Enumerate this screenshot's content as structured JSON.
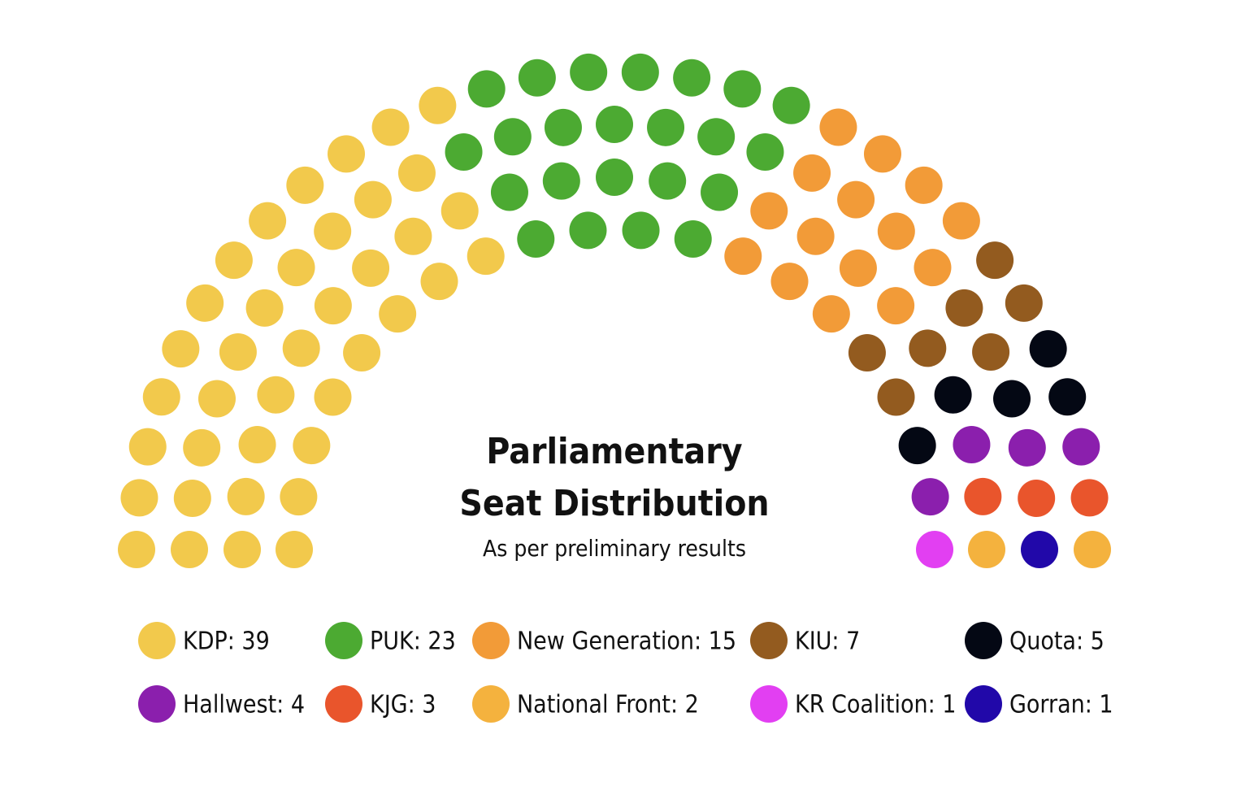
{
  "chart_data": {
    "type": "parliament",
    "title": [
      "Parliamentary",
      "Seat Distribution"
    ],
    "subtitle": "As per preliminary results",
    "labels": [
      "KDP: 39",
      "PUK: 23",
      "New Generation: 15",
      "KIU: 7",
      "Quota: 5",
      "Hallwest: 4",
      "KJG: 3",
      "National Front: 2",
      "KR Coalition: 1",
      "Gorran: 1"
    ],
    "values": [
      39,
      23,
      15,
      7,
      5,
      4,
      3,
      2,
      1,
      1
    ],
    "colors": [
      "#f2c94c",
      "#4caa32",
      "#f29b38",
      "#935b1f",
      "#040814",
      "#8b1fad",
      "#e9552c",
      "#f4b23e",
      "#e23ff2",
      "#2108a9"
    ]
  }
}
